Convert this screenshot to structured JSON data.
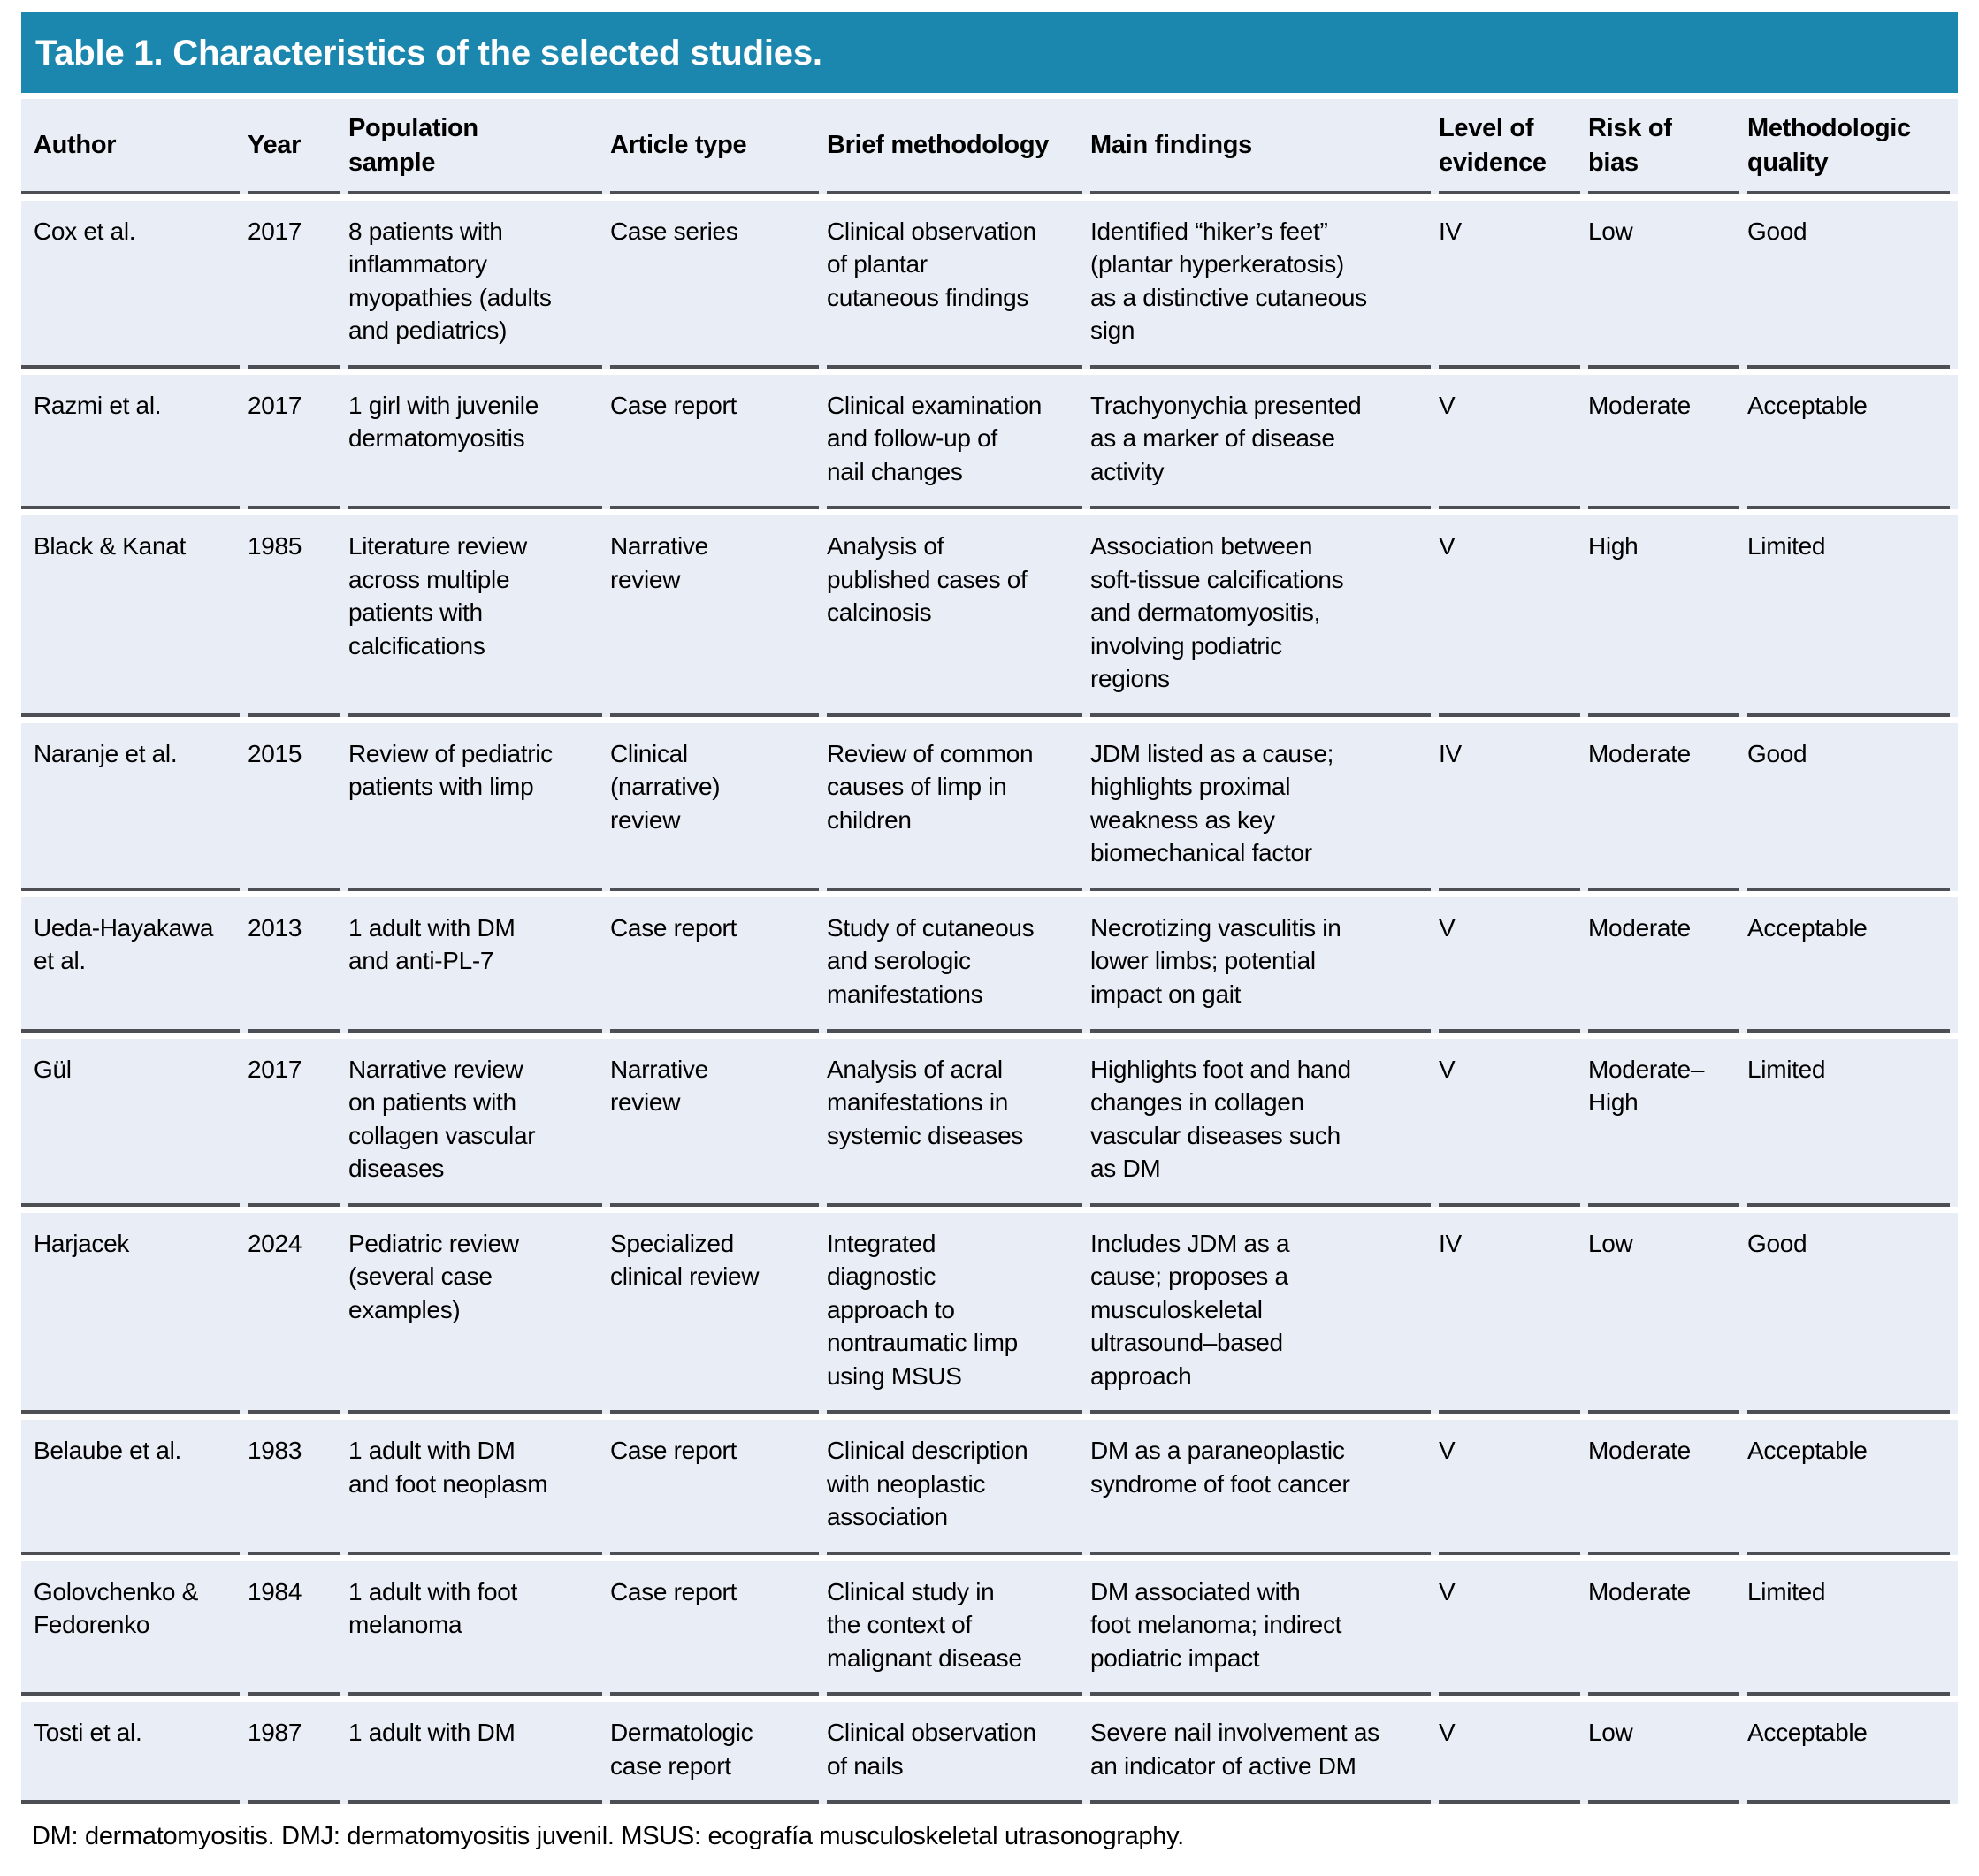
{
  "page": {
    "title": "Table 1. Characteristics of the selected studies.",
    "footnote": "DM: dermatomyositis. DMJ: dermatomyositis juvenil. MSUS: ecografía musculoskeletal utrasonography."
  },
  "colors": {
    "title_bar": "#1b86ae",
    "row_bg": "#e9edf5",
    "divider": "#4e4f54",
    "title_text": "#ffffff",
    "body_text": "#000000"
  },
  "table": {
    "columns": [
      "Author",
      "Year",
      "Population\nsample",
      "Article type",
      "Brief methodology",
      "Main findings",
      "Level of\nevidence",
      "Risk of\nbias",
      "Methodologic\nquality"
    ],
    "rows": [
      [
        "Cox et al.",
        "2017",
        "8 patients with\ninflammatory\nmyopathies (adults\nand pediatrics)",
        "Case series",
        "Clinical observation\nof plantar\ncutaneous findings",
        "Identified “hiker’s feet”\n(plantar hyperkeratosis)\nas a distinctive cutaneous\nsign",
        "IV",
        "Low",
        "Good"
      ],
      [
        "Razmi et al.",
        "2017",
        "1 girl with juvenile\ndermatomyositis",
        "Case report",
        "Clinical examination\nand follow-up of\nnail changes",
        "Trachyonychia presented\nas a marker of disease\nactivity",
        "V",
        "Moderate",
        "Acceptable"
      ],
      [
        "Black & Kanat",
        "1985",
        "Literature review\nacross multiple\npatients with\ncalcifications",
        "Narrative\nreview",
        "Analysis of\npublished cases of\ncalcinosis",
        "Association between\nsoft-tissue calcifications\nand dermatomyositis,\ninvolving podiatric\nregions",
        "V",
        "High",
        "Limited"
      ],
      [
        "Naranje et al.",
        "2015",
        "Review of pediatric\npatients with limp",
        "Clinical\n(narrative)\nreview",
        "Review of common\ncauses of limp in\nchildren",
        "JDM listed as a cause;\nhighlights proximal\nweakness as key\nbiomechanical factor",
        "IV",
        "Moderate",
        "Good"
      ],
      [
        "Ueda-Hayakawa\net al.",
        "2013",
        "1 adult with DM\nand anti-PL-7",
        "Case report",
        "Study of cutaneous\nand serologic\nmanifestations",
        "Necrotizing vasculitis in\nlower limbs; potential\nimpact on gait",
        "V",
        "Moderate",
        "Acceptable"
      ],
      [
        "Gül",
        "2017",
        "Narrative review\non patients with\ncollagen vascular\ndiseases",
        "Narrative\nreview",
        "Analysis of acral\nmanifestations in\nsystemic diseases",
        "Highlights foot and hand\nchanges in collagen\nvascular diseases such\nas DM",
        "V",
        "Moderate–\nHigh",
        "Limited"
      ],
      [
        "Harjacek",
        "2024",
        "Pediatric review\n(several case\nexamples)",
        "Specialized\nclinical review",
        "Integrated\ndiagnostic\napproach to\nnontraumatic limp\nusing MSUS",
        "Includes JDM as a\ncause; proposes a\nmusculoskeletal\nultrasound–based\napproach",
        "IV",
        "Low",
        "Good"
      ],
      [
        "Belaube et al.",
        "1983",
        "1 adult with DM\nand foot neoplasm",
        "Case report",
        "Clinical description\nwith neoplastic\nassociation",
        "DM as a paraneoplastic\nsyndrome of foot cancer",
        "V",
        "Moderate",
        "Acceptable"
      ],
      [
        "Golovchenko &\nFedorenko",
        "1984",
        "1 adult with foot\nmelanoma",
        "Case report",
        "Clinical study in\nthe context of\nmalignant disease",
        "DM associated with\nfoot melanoma; indirect\npodiatric impact",
        "V",
        "Moderate",
        "Limited"
      ],
      [
        "Tosti et al.",
        "1987",
        "1 adult with DM",
        "Dermatologic\ncase report",
        "Clinical observation\nof nails",
        "Severe nail involvement as\nan indicator of active DM",
        "V",
        "Low",
        "Acceptable"
      ]
    ]
  }
}
